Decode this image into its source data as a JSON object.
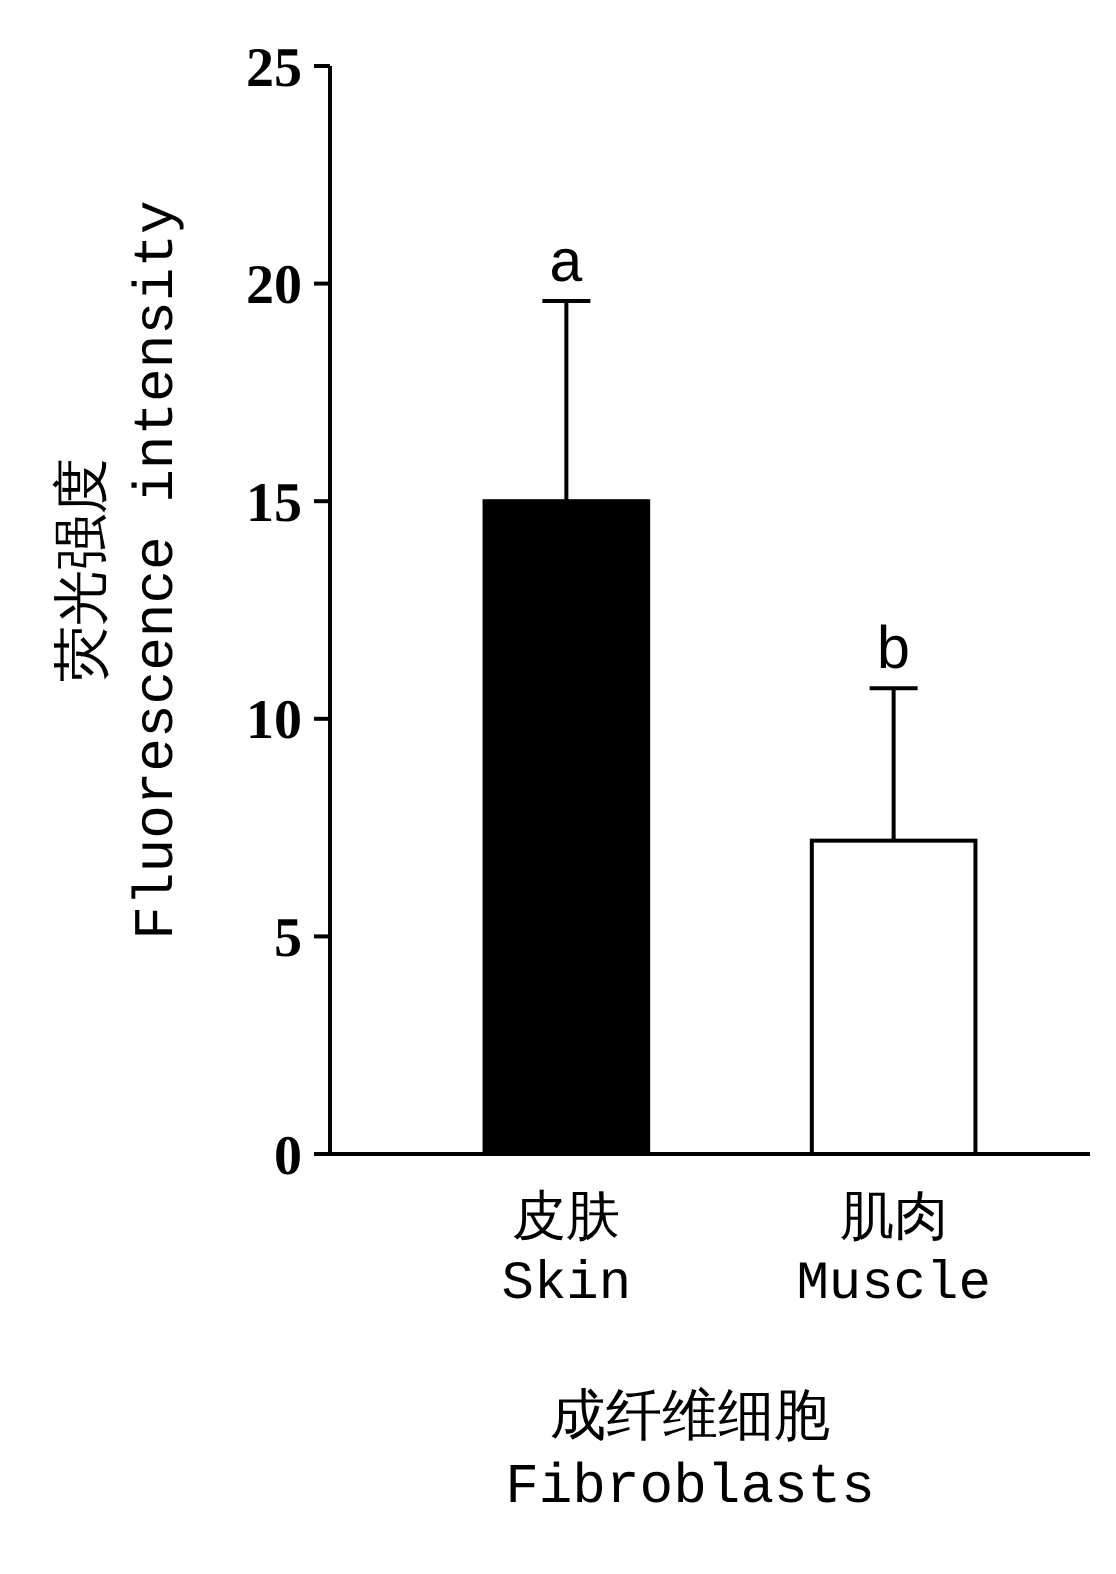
{
  "chart_data": {
    "type": "bar",
    "xlabel": "成纤维细胞\nFibroblasts",
    "ylabel": "荧光强度\nFluorescence intensity",
    "categories": [
      "皮肤\nSkin",
      "肌肉\nMuscle"
    ],
    "values": [
      15,
      7.2
    ],
    "colors": [
      "#000000",
      "#ffffff"
    ],
    "errors": [
      [
        15,
        19.6
      ],
      [
        7.2,
        10.7
      ]
    ],
    "ylim": [
      0,
      25
    ],
    "yticks": [
      0,
      5,
      10,
      15,
      20,
      25
    ],
    "grid": false,
    "annotations": [
      {
        "text": "a",
        "x": "皮肤\nSkin",
        "y": 19.6
      },
      {
        "text": "b",
        "x": "肌肉\nMuscle",
        "y": 10.7
      }
    ]
  }
}
